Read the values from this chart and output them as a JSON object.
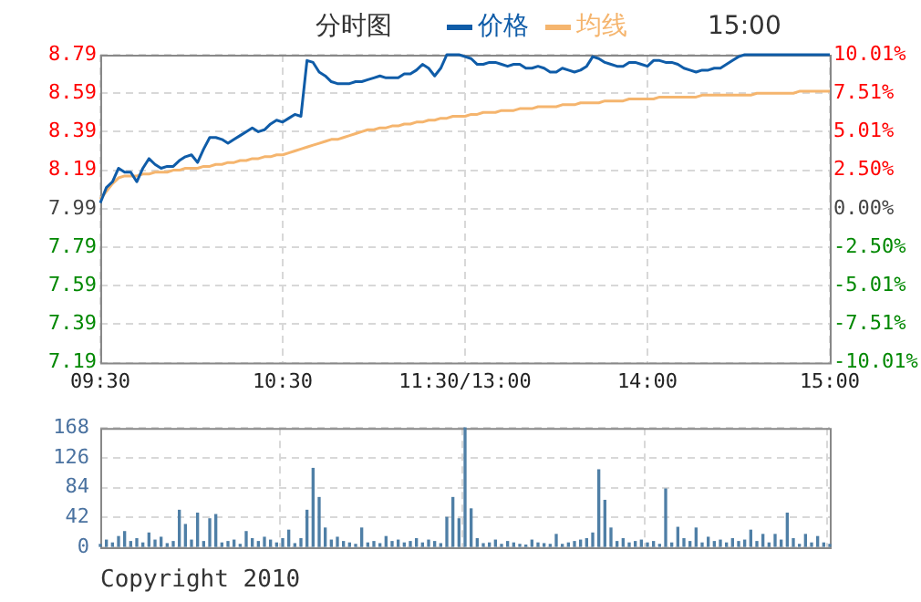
{
  "chart_data": [
    {
      "type": "line",
      "annotations": [
        "分时图",
        "15:00"
      ],
      "legend": "top",
      "grid": true,
      "categories": [
        "09:30",
        null,
        null,
        null,
        null,
        null,
        null,
        null,
        null,
        null,
        null,
        null,
        null,
        null,
        null,
        null,
        null,
        null,
        null,
        null,
        null,
        null,
        null,
        null,
        null,
        null,
        null,
        null,
        null,
        null,
        "10:30",
        null,
        null,
        null,
        null,
        null,
        null,
        null,
        null,
        null,
        null,
        null,
        null,
        null,
        null,
        null,
        null,
        null,
        null,
        null,
        null,
        null,
        null,
        null,
        null,
        null,
        null,
        null,
        null,
        null,
        "11:30/13:00",
        null,
        null,
        null,
        null,
        null,
        null,
        null,
        null,
        null,
        null,
        null,
        null,
        null,
        null,
        null,
        null,
        null,
        null,
        null,
        null,
        null,
        null,
        null,
        null,
        null,
        null,
        null,
        null,
        null,
        "14:00",
        null,
        null,
        null,
        null,
        null,
        null,
        null,
        null,
        null,
        null,
        null,
        null,
        null,
        null,
        null,
        null,
        null,
        null,
        null,
        null,
        null,
        null,
        null,
        null,
        null,
        null,
        null,
        null,
        null,
        "15:00"
      ],
      "ylim": [
        7.19,
        8.79
      ],
      "yticks": [
        7.19,
        7.39,
        7.59,
        7.79,
        7.99,
        8.19,
        8.39,
        8.59,
        8.79
      ],
      "y2lim": [
        -10.01,
        10.01
      ],
      "y2ticks": [
        {
          "value": -10.01,
          "label": "-10.01%"
        },
        {
          "value": -7.51,
          "label": "-7.51%"
        },
        {
          "value": -5.01,
          "label": "-5.01%"
        },
        {
          "value": -2.5,
          "label": "-2.50%"
        },
        {
          "value": 0,
          "label": "0.00%"
        },
        {
          "value": 2.5,
          "label": "2.50%"
        },
        {
          "value": 5.01,
          "label": "5.01%"
        },
        {
          "value": 7.51,
          "label": "7.51%"
        },
        {
          "value": 10.01,
          "label": "10.01%"
        }
      ],
      "series": [
        {
          "name": "价格",
          "color": "#0f5ca8",
          "values": [
            8.02,
            8.1,
            8.13,
            8.2,
            8.18,
            8.18,
            8.13,
            8.2,
            8.25,
            8.22,
            8.2,
            8.21,
            8.21,
            8.24,
            8.26,
            8.27,
            8.23,
            8.3,
            8.36,
            8.36,
            8.35,
            8.33,
            8.35,
            8.37,
            8.39,
            8.41,
            8.39,
            8.4,
            8.43,
            8.45,
            8.44,
            8.46,
            8.48,
            8.47,
            8.76,
            8.75,
            8.7,
            8.68,
            8.65,
            8.64,
            8.64,
            8.64,
            8.65,
            8.65,
            8.66,
            8.67,
            8.68,
            8.67,
            8.67,
            8.67,
            8.69,
            8.69,
            8.71,
            8.74,
            8.72,
            8.68,
            8.72,
            8.79,
            8.79,
            8.79,
            8.78,
            8.77,
            8.74,
            8.74,
            8.75,
            8.75,
            8.74,
            8.73,
            8.74,
            8.74,
            8.72,
            8.72,
            8.73,
            8.72,
            8.7,
            8.7,
            8.72,
            8.71,
            8.7,
            8.71,
            8.73,
            8.78,
            8.77,
            8.75,
            8.74,
            8.73,
            8.73,
            8.75,
            8.75,
            8.74,
            8.73,
            8.76,
            8.76,
            8.75,
            8.75,
            8.74,
            8.72,
            8.71,
            8.7,
            8.71,
            8.71,
            8.72,
            8.72,
            8.74,
            8.76,
            8.78,
            8.79,
            8.79,
            8.79,
            8.79,
            8.79,
            8.79,
            8.79,
            8.79,
            8.79,
            8.79,
            8.79,
            8.79,
            8.79,
            8.79,
            8.79
          ]
        },
        {
          "name": "均线",
          "color": "#f5b56e",
          "values": [
            8.04,
            8.08,
            8.12,
            8.15,
            8.16,
            8.16,
            8.16,
            8.17,
            8.17,
            8.18,
            8.18,
            8.18,
            8.19,
            8.19,
            8.2,
            8.2,
            8.2,
            8.21,
            8.21,
            8.22,
            8.22,
            8.23,
            8.23,
            8.24,
            8.24,
            8.25,
            8.25,
            8.26,
            8.26,
            8.27,
            8.27,
            8.28,
            8.29,
            8.3,
            8.31,
            8.32,
            8.33,
            8.34,
            8.35,
            8.35,
            8.36,
            8.37,
            8.38,
            8.39,
            8.4,
            8.4,
            8.41,
            8.41,
            8.42,
            8.42,
            8.43,
            8.43,
            8.44,
            8.44,
            8.45,
            8.45,
            8.46,
            8.46,
            8.47,
            8.47,
            8.47,
            8.48,
            8.48,
            8.49,
            8.49,
            8.49,
            8.5,
            8.5,
            8.5,
            8.51,
            8.51,
            8.51,
            8.52,
            8.52,
            8.52,
            8.52,
            8.53,
            8.53,
            8.53,
            8.54,
            8.54,
            8.54,
            8.54,
            8.55,
            8.55,
            8.55,
            8.55,
            8.56,
            8.56,
            8.56,
            8.56,
            8.56,
            8.57,
            8.57,
            8.57,
            8.57,
            8.57,
            8.57,
            8.57,
            8.58,
            8.58,
            8.58,
            8.58,
            8.58,
            8.58,
            8.58,
            8.58,
            8.58,
            8.59,
            8.59,
            8.59,
            8.59,
            8.59,
            8.59,
            8.59,
            8.6,
            8.6,
            8.6,
            8.6,
            8.6,
            8.6
          ]
        }
      ]
    },
    {
      "type": "bar",
      "annotations": [
        "Copyright 2010"
      ],
      "grid": true,
      "tick_labels": "y",
      "categories": [
        null,
        null,
        null,
        null,
        null,
        null,
        null,
        null,
        null,
        null,
        null,
        null,
        null,
        null,
        null,
        null,
        null,
        null,
        null,
        null,
        null,
        null,
        null,
        null,
        null,
        null,
        null,
        null,
        null,
        null,
        null,
        null,
        null,
        null,
        null,
        null,
        null,
        null,
        null,
        null,
        null,
        null,
        null,
        null,
        null,
        null,
        null,
        null,
        null,
        null,
        null,
        null,
        null,
        null,
        null,
        null,
        null,
        null,
        null,
        null,
        null,
        null,
        null,
        null,
        null,
        null,
        null,
        null,
        null,
        null,
        null,
        null,
        null,
        null,
        null,
        null,
        null,
        null,
        null,
        null,
        null,
        null,
        null,
        null,
        null,
        null,
        null,
        null,
        null,
        null,
        null,
        null,
        null,
        null,
        null,
        null,
        null,
        null,
        null,
        null,
        null,
        null,
        null,
        null,
        null,
        null,
        null,
        null,
        null,
        null,
        null,
        null,
        null,
        null,
        null,
        null,
        null,
        null,
        null,
        null,
        null
      ],
      "ylim": [
        0,
        168
      ],
      "yticks": [
        0,
        42,
        84,
        126,
        168
      ],
      "series": [
        {
          "color": "#4f7fa6",
          "values": [
            4,
            10,
            6,
            15,
            22,
            8,
            12,
            6,
            20,
            10,
            14,
            5,
            8,
            52,
            32,
            10,
            48,
            8,
            40,
            46,
            6,
            8,
            10,
            4,
            22,
            12,
            8,
            14,
            10,
            6,
            12,
            24,
            5,
            12,
            52,
            111,
            70,
            27,
            10,
            14,
            8,
            6,
            4,
            27,
            6,
            8,
            5,
            15,
            8,
            10,
            6,
            8,
            12,
            6,
            10,
            8,
            5,
            42,
            70,
            40,
            168,
            54,
            12,
            5,
            6,
            10,
            4,
            8,
            6,
            4,
            3,
            10,
            6,
            5,
            4,
            18,
            4,
            6,
            8,
            10,
            12,
            20,
            109,
            66,
            27,
            8,
            12,
            6,
            8,
            10,
            6,
            8,
            4,
            82,
            6,
            28,
            12,
            8,
            27,
            6,
            14,
            8,
            10,
            6,
            12,
            8,
            10,
            24,
            8,
            18,
            6,
            18,
            10,
            48,
            12,
            4,
            18,
            6,
            15,
            6,
            4
          ]
        }
      ]
    }
  ]
}
